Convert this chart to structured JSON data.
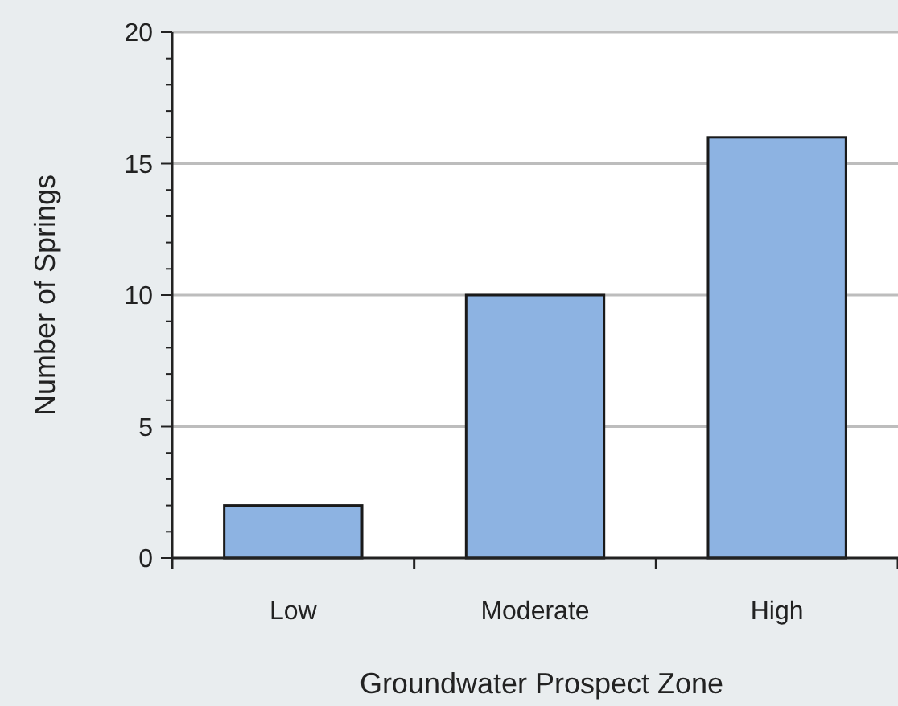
{
  "chart_data": {
    "type": "bar",
    "xlabel": "Groundwater Prospect Zone",
    "ylabel": "Number of Springs",
    "categories": [
      "Low",
      "Moderate",
      "High"
    ],
    "values": [
      2,
      10,
      16
    ],
    "color": "#8db3e2",
    "ylim": [
      0,
      20
    ],
    "yticks": [
      0,
      {
        "value": 1,
        "label": null
      },
      {
        "value": 2,
        "label": null
      },
      {
        "value": 3,
        "label": null
      },
      {
        "value": 4,
        "label": null
      },
      5,
      {
        "value": 6,
        "label": null
      },
      {
        "value": 7,
        "label": null
      },
      {
        "value": 8,
        "label": null
      },
      {
        "value": 9,
        "label": null
      },
      10,
      {
        "value": 11,
        "label": null
      },
      {
        "value": 12,
        "label": null
      },
      {
        "value": 13,
        "label": null
      },
      {
        "value": 14,
        "label": null
      },
      15,
      {
        "value": 16,
        "label": null
      },
      {
        "value": 17,
        "label": null
      },
      {
        "value": 18,
        "label": null
      },
      {
        "value": 19,
        "label": null
      },
      20
    ],
    "grid": "y"
  }
}
